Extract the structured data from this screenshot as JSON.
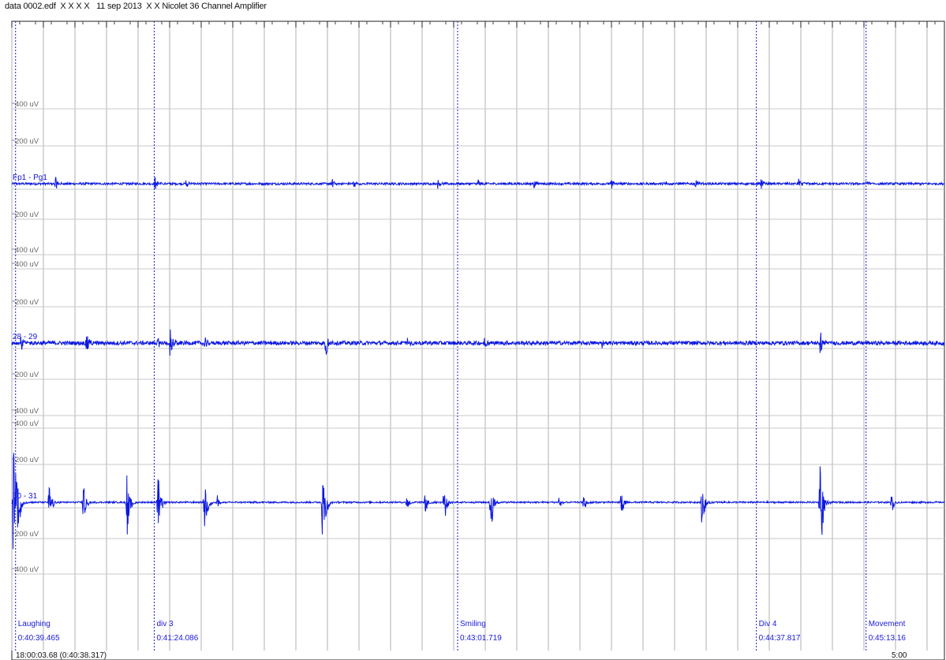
{
  "window": {
    "title": "data 0002.edf  X X X X   11 sep 2013  X X Nicolet 36 Channel Amplifier"
  },
  "colors": {
    "trace": "#0c18e0",
    "annotation": "#1a1ad8",
    "grid": "#b0b0b0",
    "background": "#ffffff"
  },
  "channels": [
    {
      "name": "Fp1 - Pg1",
      "scale_labels": [
        "400 uV",
        "200 uV",
        "200 uV",
        "400 uV"
      ]
    },
    {
      "name": "28 - 29",
      "scale_labels": [
        "400 uV",
        "200 uV",
        "200 uV",
        "400 uV"
      ]
    },
    {
      "name": "30 - 31",
      "scale_labels": [
        "400 uV",
        "200 uV",
        "200 uV",
        "400 uV"
      ]
    }
  ],
  "annotations": [
    {
      "label": "Laughing",
      "time": "0:40:39.465"
    },
    {
      "label": "div 3",
      "time": "0:41:24.086"
    },
    {
      "label": "Smiling",
      "time": "0:43:01.719"
    },
    {
      "label": "Div 4",
      "time": "0:44:37.817"
    },
    {
      "label": "Movement",
      "time": "0:45:13.16"
    }
  ],
  "footer": {
    "start_time": "18:00:03.68 (0:40:38.317)",
    "duration": "5:00"
  },
  "chart_data": {
    "type": "line",
    "title": "data 0002.edf  X X X X   11 sep 2013  X X Nicolet 36 Channel Amplifier",
    "xlabel": "",
    "ylabel": "",
    "x_range_seconds": [
      0,
      300
    ],
    "ylim_uV": [
      -400,
      400
    ],
    "grid": true,
    "series": [
      {
        "name": "Fp1 - Pg1",
        "baseline_uV": 0,
        "noise_uV": 6,
        "events": [
          {
            "t": 14,
            "amp": 40
          },
          {
            "t": 46,
            "amp": 45
          },
          {
            "t": 56,
            "amp": 35
          },
          {
            "t": 103,
            "amp": 40
          },
          {
            "t": 110,
            "amp": 25
          },
          {
            "t": 137,
            "amp": 25
          },
          {
            "t": 150,
            "amp": 30
          },
          {
            "t": 168,
            "amp": 25
          },
          {
            "t": 193,
            "amp": 25
          },
          {
            "t": 210,
            "amp": 25
          },
          {
            "t": 220,
            "amp": 30
          },
          {
            "t": 241,
            "amp": 30
          },
          {
            "t": 253,
            "amp": 35
          },
          {
            "t": 275,
            "amp": 25
          }
        ]
      },
      {
        "name": "28 - 29",
        "baseline_uV": 0,
        "noise_uV": 10,
        "events": [
          {
            "t": 3,
            "amp": 55
          },
          {
            "t": 24,
            "amp": 80
          },
          {
            "t": 47,
            "amp": 30
          },
          {
            "t": 51,
            "amp": 85
          },
          {
            "t": 62,
            "amp": 35
          },
          {
            "t": 101,
            "amp": 85
          },
          {
            "t": 127,
            "amp": 30
          },
          {
            "t": 152,
            "amp": 30
          },
          {
            "t": 190,
            "amp": 30
          },
          {
            "t": 260,
            "amp": 70
          }
        ]
      },
      {
        "name": "30 - 31",
        "baseline_uV": 0,
        "noise_uV": 4,
        "events": [
          {
            "t": 0.5,
            "amp": 330
          },
          {
            "t": 1.5,
            "amp": 300
          },
          {
            "t": 12,
            "amp": 110
          },
          {
            "t": 23,
            "amp": 120
          },
          {
            "t": 37,
            "amp": 210
          },
          {
            "t": 47,
            "amp": 170
          },
          {
            "t": 62,
            "amp": 170
          },
          {
            "t": 66,
            "amp": 40
          },
          {
            "t": 100,
            "amp": 310
          },
          {
            "t": 127,
            "amp": 40
          },
          {
            "t": 133,
            "amp": 60
          },
          {
            "t": 139,
            "amp": 110
          },
          {
            "t": 154,
            "amp": 170
          },
          {
            "t": 176,
            "amp": 40
          },
          {
            "t": 184,
            "amp": 50
          },
          {
            "t": 196,
            "amp": 70
          },
          {
            "t": 222,
            "amp": 130
          },
          {
            "t": 260,
            "amp": 330
          },
          {
            "t": 283,
            "amp": 50
          }
        ]
      }
    ],
    "annotations": [
      {
        "label": "Laughing",
        "t": 1.2,
        "time": "0:40:39.465"
      },
      {
        "label": "div 3",
        "t": 45.8,
        "time": "0:41:24.086"
      },
      {
        "label": "Smiling",
        "t": 143.4,
        "time": "0:43:01.719"
      },
      {
        "label": "Div 4",
        "t": 239.5,
        "time": "0:44:37.817"
      },
      {
        "label": "Movement",
        "t": 274.8,
        "time": "0:45:13.16"
      }
    ]
  }
}
